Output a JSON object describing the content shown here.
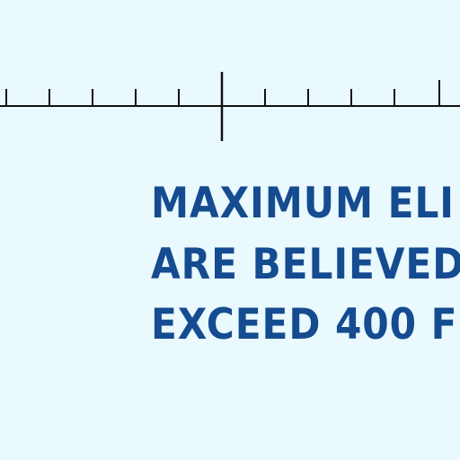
{
  "map": {
    "background_color": "#e9f9fd",
    "ink_color": "#154b90",
    "scale_color": "#111111",
    "note": {
      "lines": [
        "MAXIMUM ELI",
        "ARE BELIEVED",
        "EXCEED 400 F"
      ]
    }
  }
}
